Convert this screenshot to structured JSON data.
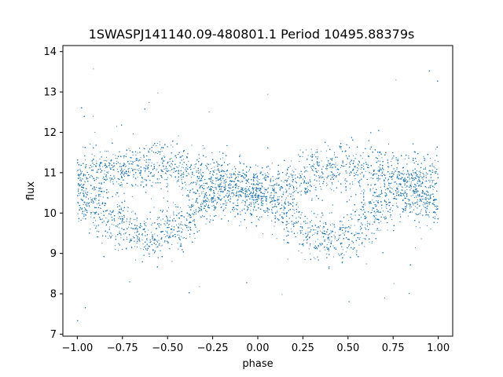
{
  "chart_data": {
    "type": "scatter",
    "title": "1SWASPJ141140.09-480801.1 Period 10495.88379s",
    "xlabel": "phase",
    "ylabel": "flux",
    "xlim": [
      -1.08,
      1.08
    ],
    "ylim": [
      6.95,
      14.15
    ],
    "x_ticks": [
      -1.0,
      -0.75,
      -0.5,
      -0.25,
      0.0,
      0.25,
      0.5,
      0.75,
      1.0
    ],
    "x_tick_labels": [
      "−1.00",
      "−0.75",
      "−0.50",
      "−0.25",
      "0.00",
      "0.25",
      "0.50",
      "0.75",
      "1.00"
    ],
    "y_ticks": [
      7,
      8,
      9,
      10,
      11,
      12,
      13,
      14
    ],
    "y_tick_labels": [
      "7",
      "8",
      "9",
      "10",
      "11",
      "12",
      "13",
      "14"
    ],
    "grid": false,
    "marker_color": "#1f77b4",
    "envelope": {
      "phase": [
        -1.0,
        -0.9,
        -0.8,
        -0.7,
        -0.6,
        -0.5,
        -0.4,
        -0.3,
        -0.2,
        -0.1,
        0.0,
        0.1,
        0.2,
        0.3,
        0.4,
        0.5,
        0.6,
        0.7,
        0.8,
        0.9,
        1.0
      ],
      "upper_band_center": [
        10.9,
        10.95,
        11.05,
        11.1,
        11.15,
        11.1,
        11.0,
        10.85,
        10.7,
        10.6,
        10.5,
        10.6,
        10.75,
        10.95,
        11.1,
        11.1,
        11.0,
        10.9,
        10.8,
        10.85,
        10.9
      ],
      "lower_band_center": [
        10.2,
        10.0,
        9.8,
        9.55,
        9.35,
        9.5,
        9.8,
        10.2,
        10.5,
        10.6,
        10.5,
        10.15,
        9.8,
        9.5,
        9.35,
        9.5,
        9.8,
        10.2,
        10.5,
        10.4,
        10.2
      ]
    }
  }
}
